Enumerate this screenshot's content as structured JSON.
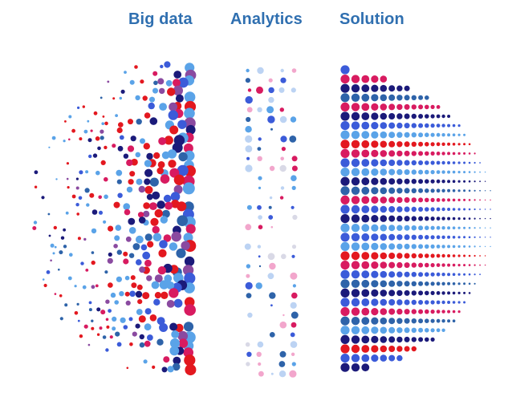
{
  "titles": {
    "big_data": "Big data",
    "analytics": "Analytics",
    "solution": "Solution"
  },
  "colors": {
    "title": "#2f6fb0",
    "dot_palette": [
      "#e3181f",
      "#d81b60",
      "#1b1a7a",
      "#2e63a9",
      "#3b5bd9",
      "#5aa3e8",
      "#8a4aa0",
      "#f2a6cc",
      "#bcd3f3",
      "#d9d9e6"
    ]
  },
  "panels": {
    "big_data": {
      "style": "scattered dots, sizes increase to the right"
    },
    "analytics": {
      "style": "sparse pastel column of dots"
    },
    "solution": {
      "style": "ordered dot rows forming a half-disc, sizes decrease to the right"
    }
  }
}
